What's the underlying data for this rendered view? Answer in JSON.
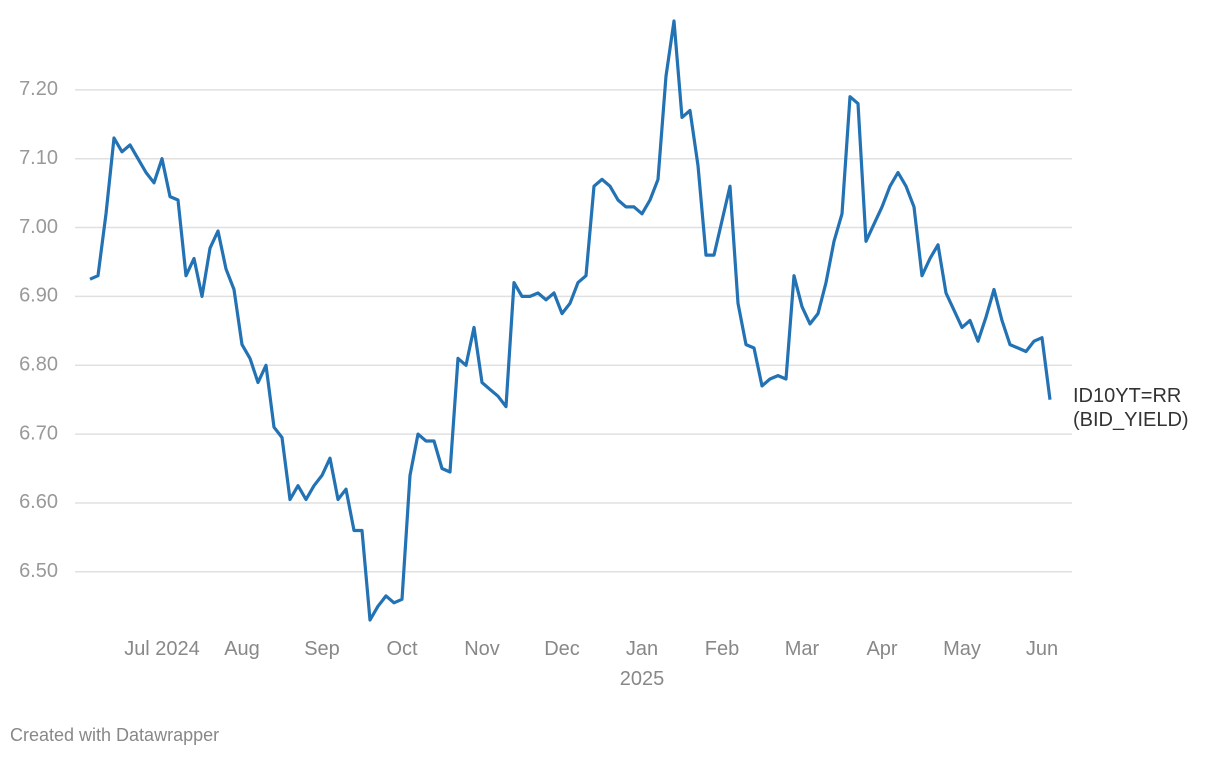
{
  "chart_data": {
    "type": "line",
    "categories": [
      null,
      null,
      null,
      null,
      null,
      null,
      null,
      null,
      null,
      "Jul 2024",
      null,
      null,
      null,
      null,
      null,
      null,
      null,
      null,
      null,
      "Aug",
      null,
      null,
      null,
      null,
      null,
      null,
      null,
      null,
      null,
      "Sep",
      null,
      null,
      null,
      null,
      null,
      null,
      null,
      null,
      null,
      "Oct",
      null,
      null,
      null,
      null,
      null,
      null,
      null,
      null,
      null,
      "Nov",
      null,
      null,
      null,
      null,
      null,
      null,
      null,
      null,
      null,
      "Dec",
      null,
      null,
      null,
      null,
      null,
      null,
      null,
      null,
      null,
      "Jan 2025",
      null,
      null,
      null,
      null,
      null,
      null,
      null,
      null,
      null,
      "Feb",
      null,
      null,
      null,
      null,
      null,
      null,
      null,
      null,
      null,
      "Mar",
      null,
      null,
      null,
      null,
      null,
      null,
      null,
      null,
      null,
      "Apr",
      null,
      null,
      null,
      null,
      null,
      null,
      null,
      null,
      null,
      "May",
      null,
      null,
      null,
      null,
      null,
      null,
      null,
      null,
      null,
      "Jun",
      null
    ],
    "series": [
      {
        "name": "ID10YT=RR (BID_YIELD)",
        "color": "#2272b4",
        "values": [
          6.925,
          6.93,
          7.02,
          7.13,
          7.11,
          7.12,
          7.1,
          7.08,
          7.065,
          7.1,
          7.045,
          7.04,
          6.93,
          6.955,
          6.9,
          6.97,
          6.995,
          6.94,
          6.91,
          6.83,
          6.81,
          6.775,
          6.8,
          6.71,
          6.695,
          6.605,
          6.625,
          6.605,
          6.625,
          6.64,
          6.665,
          6.605,
          6.62,
          6.56,
          6.56,
          6.43,
          6.45,
          6.465,
          6.455,
          6.46,
          6.64,
          6.7,
          6.69,
          6.69,
          6.65,
          6.645,
          6.81,
          6.8,
          6.855,
          6.775,
          6.765,
          6.755,
          6.74,
          6.92,
          6.9,
          6.9,
          6.905,
          6.895,
          6.905,
          6.875,
          6.89,
          6.92,
          6.93,
          7.06,
          7.07,
          7.06,
          7.04,
          7.03,
          7.03,
          7.02,
          7.04,
          7.07,
          7.22,
          7.3,
          7.16,
          7.17,
          7.09,
          6.96,
          6.96,
          7.01,
          7.06,
          6.89,
          6.83,
          6.825,
          6.77,
          6.78,
          6.785,
          6.78,
          6.93,
          6.885,
          6.86,
          6.875,
          6.92,
          6.98,
          7.02,
          7.19,
          7.18,
          6.98,
          7.005,
          7.03,
          7.06,
          7.08,
          7.06,
          7.03,
          6.93,
          6.955,
          6.975,
          6.905,
          6.88,
          6.855,
          6.865,
          6.835,
          6.87,
          6.91,
          6.865,
          6.83,
          6.825,
          6.82,
          6.835,
          6.84,
          6.75
        ]
      }
    ],
    "ylim": [
      6.43,
      7.3
    ],
    "yticks": [
      {
        "value": 6.5,
        "label": "6.50"
      },
      {
        "value": 6.6,
        "label": "6.60"
      },
      {
        "value": 6.7,
        "label": "6.70"
      },
      {
        "value": 6.8,
        "label": "6.80"
      },
      {
        "value": 6.9,
        "label": "6.90"
      },
      {
        "value": 7.0,
        "label": "7.00"
      },
      {
        "value": 7.1,
        "label": "7.10"
      },
      {
        "value": 7.2,
        "label": "7.20"
      }
    ],
    "grid": true,
    "credit": "Created with Datawrapper"
  }
}
